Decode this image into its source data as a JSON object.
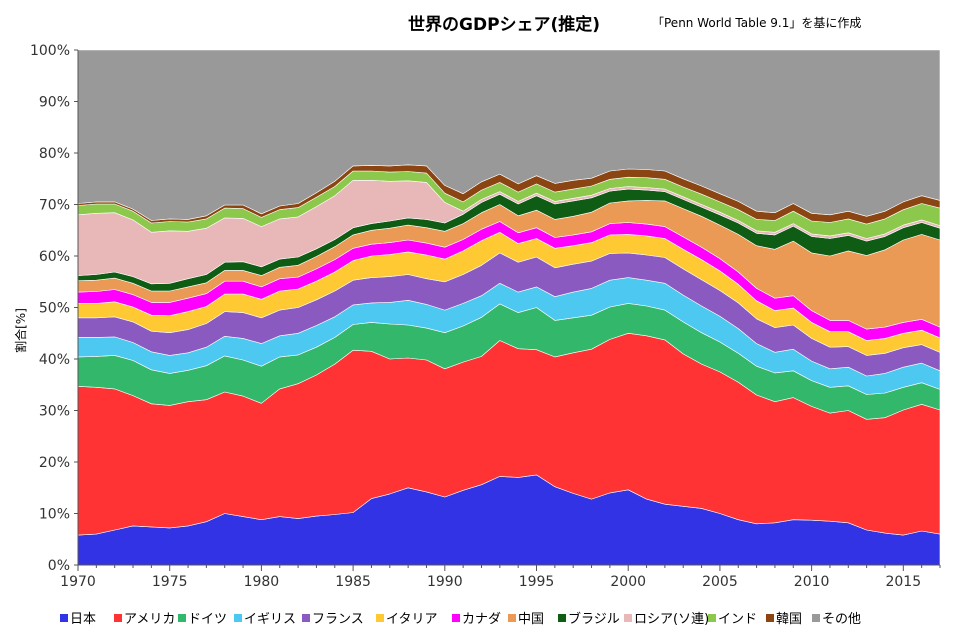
{
  "chart_data": {
    "type": "area",
    "title": "世界のGDPシェア(推定)",
    "subtitle": "「Penn World Table 9.1」を基に作成",
    "ylabel": "割合[%]",
    "xlabel": "",
    "ylim": [
      0,
      100
    ],
    "xlim": [
      1970,
      2017
    ],
    "stacked": true,
    "grid": "off",
    "legend_position": "bottom",
    "x_ticks": [
      "1970",
      "1975",
      "1980",
      "1985",
      "1990",
      "1995",
      "2000",
      "2005",
      "2010",
      "2015"
    ],
    "y_ticks": [
      "0%",
      "10%",
      "20%",
      "30%",
      "40%",
      "50%",
      "60%",
      "70%",
      "80%",
      "90%",
      "100%"
    ],
    "x": [
      1970,
      1971,
      1972,
      1973,
      1974,
      1975,
      1976,
      1977,
      1978,
      1979,
      1980,
      1981,
      1982,
      1983,
      1984,
      1985,
      1986,
      1987,
      1988,
      1989,
      1990,
      1991,
      1992,
      1993,
      1994,
      1995,
      1996,
      1997,
      1998,
      1999,
      2000,
      2001,
      2002,
      2003,
      2004,
      2005,
      2006,
      2007,
      2008,
      2009,
      2010,
      2011,
      2012,
      2013,
      2014,
      2015,
      2016,
      2017
    ],
    "series": [
      {
        "name": "日本",
        "color": "#3333e6",
        "values": [
          5.8,
          6.0,
          6.8,
          7.6,
          7.4,
          7.2,
          7.6,
          8.4,
          10.0,
          9.4,
          8.8,
          9.4,
          9.0,
          9.5,
          9.8,
          10.2,
          12.9,
          13.8,
          15.0,
          14.2,
          13.2,
          14.5,
          15.6,
          17.2,
          17.0,
          17.5,
          15.2,
          13.9,
          12.8,
          14.0,
          14.6,
          12.8,
          11.8,
          11.4,
          11.0,
          10.0,
          8.8,
          8.0,
          8.2,
          8.8,
          8.7,
          8.5,
          8.2,
          6.8,
          6.2,
          5.8,
          6.6,
          6.0
        ]
      },
      {
        "name": "アメリカ",
        "color": "#ff3333",
        "values": [
          28.9,
          28.5,
          27.4,
          25.3,
          23.9,
          23.8,
          24.1,
          23.7,
          23.6,
          23.4,
          22.6,
          24.8,
          26.2,
          27.4,
          29.2,
          31.5,
          28.6,
          26.2,
          25.2,
          25.6,
          24.9,
          24.9,
          24.9,
          26.4,
          25.0,
          24.3,
          25.2,
          27.3,
          29.1,
          29.8,
          30.4,
          31.7,
          31.9,
          29.6,
          28.0,
          27.5,
          26.7,
          25.0,
          23.5,
          23.7,
          22.1,
          21.0,
          21.8,
          21.5,
          22.4,
          24.3,
          24.6,
          24.1
        ]
      },
      {
        "name": "ドイツ",
        "color": "#33b86b",
        "values": [
          5.7,
          6.0,
          6.5,
          6.8,
          6.6,
          6.2,
          6.1,
          6.6,
          7.0,
          7.0,
          7.2,
          6.2,
          5.6,
          5.4,
          5.2,
          5.0,
          5.6,
          6.8,
          6.4,
          6.2,
          7.0,
          7.0,
          7.6,
          7.1,
          7.0,
          8.2,
          7.1,
          6.8,
          6.6,
          6.3,
          5.8,
          5.8,
          5.8,
          6.2,
          6.1,
          5.8,
          5.6,
          5.6,
          5.6,
          5.2,
          5.0,
          5.0,
          4.8,
          4.8,
          4.8,
          4.4,
          4.2,
          4.0
        ]
      },
      {
        "name": "イギリス",
        "color": "#4dc8f0",
        "values": [
          3.8,
          3.7,
          3.6,
          3.5,
          3.5,
          3.5,
          3.4,
          3.6,
          3.8,
          4.2,
          4.4,
          4.1,
          4.2,
          4.2,
          4.0,
          3.8,
          3.8,
          4.2,
          4.8,
          4.6,
          4.4,
          4.4,
          4.2,
          4.0,
          4.0,
          4.0,
          4.6,
          5.0,
          5.2,
          5.2,
          5.0,
          5.0,
          5.2,
          5.2,
          5.2,
          5.0,
          4.8,
          4.4,
          4.0,
          4.2,
          3.8,
          3.6,
          3.6,
          3.6,
          3.8,
          3.9,
          3.8,
          3.6
        ]
      },
      {
        "name": "フランス",
        "color": "#8a5ac0",
        "values": [
          3.8,
          3.8,
          3.9,
          4.0,
          4.0,
          4.4,
          4.5,
          4.6,
          4.8,
          5.0,
          5.0,
          5.0,
          5.0,
          5.0,
          5.0,
          4.8,
          4.9,
          5.0,
          5.0,
          5.0,
          5.5,
          5.6,
          5.9,
          5.9,
          5.8,
          5.8,
          5.6,
          5.4,
          5.3,
          5.2,
          4.8,
          4.9,
          5.0,
          5.1,
          5.1,
          5.0,
          5.0,
          4.8,
          4.8,
          4.7,
          4.4,
          4.2,
          4.0,
          4.0,
          3.9,
          3.8,
          3.6,
          3.6
        ]
      },
      {
        "name": "イタリア",
        "color": "#ffc933",
        "values": [
          2.8,
          2.8,
          2.9,
          2.9,
          3.1,
          3.3,
          3.5,
          3.3,
          3.4,
          3.6,
          3.6,
          3.7,
          3.6,
          3.6,
          3.7,
          3.8,
          4.2,
          4.3,
          4.4,
          4.6,
          4.4,
          4.6,
          4.8,
          4.0,
          3.6,
          3.6,
          3.8,
          3.6,
          3.6,
          3.6,
          3.6,
          3.7,
          3.7,
          3.8,
          3.9,
          3.8,
          3.6,
          3.5,
          3.3,
          3.3,
          3.1,
          3.0,
          2.9,
          2.9,
          2.9,
          2.8,
          2.8,
          2.8
        ]
      },
      {
        "name": "カナダ",
        "color": "#ff00ff",
        "values": [
          2.2,
          2.3,
          2.4,
          2.4,
          2.5,
          2.6,
          2.6,
          2.5,
          2.5,
          2.5,
          2.4,
          2.4,
          2.3,
          2.4,
          2.4,
          2.4,
          2.3,
          2.3,
          2.3,
          2.3,
          2.3,
          2.2,
          2.2,
          2.1,
          2.1,
          2.1,
          2.1,
          2.1,
          2.1,
          2.2,
          2.3,
          2.3,
          2.3,
          2.4,
          2.4,
          2.4,
          2.4,
          2.4,
          2.4,
          2.4,
          2.3,
          2.2,
          2.2,
          2.2,
          2.2,
          2.1,
          2.1,
          2.1
        ]
      },
      {
        "name": "中国",
        "color": "#ea9a55",
        "values": [
          2.2,
          2.2,
          2.2,
          2.2,
          2.2,
          2.2,
          2.2,
          2.1,
          2.1,
          2.1,
          2.2,
          2.2,
          2.3,
          2.4,
          2.5,
          2.6,
          2.7,
          2.8,
          2.9,
          3.0,
          3.1,
          3.1,
          3.2,
          3.3,
          3.3,
          3.4,
          3.5,
          3.6,
          3.8,
          4.0,
          4.2,
          4.6,
          5.0,
          5.5,
          6.0,
          6.5,
          7.3,
          8.3,
          9.5,
          10.6,
          11.2,
          12.5,
          13.5,
          14.3,
          15.0,
          16.0,
          16.5,
          16.9
        ]
      },
      {
        "name": "ブラジル",
        "color": "#0f5c14",
        "values": [
          1.0,
          1.1,
          1.2,
          1.3,
          1.4,
          1.5,
          1.6,
          1.6,
          1.6,
          1.7,
          1.7,
          1.6,
          1.6,
          1.5,
          1.4,
          1.4,
          1.3,
          1.4,
          1.4,
          1.6,
          1.6,
          1.8,
          2.0,
          2.0,
          2.3,
          2.8,
          3.0,
          3.0,
          2.8,
          2.3,
          2.3,
          2.0,
          1.8,
          1.8,
          1.8,
          2.0,
          2.2,
          2.4,
          2.8,
          2.9,
          3.2,
          3.4,
          3.0,
          2.8,
          2.6,
          2.4,
          2.3,
          2.3
        ]
      },
      {
        "name": "ロシア(ソ連)",
        "color": "#e8b8b8",
        "values": [
          11.8,
          11.9,
          11.5,
          11.0,
          10.0,
          10.2,
          9.2,
          9.0,
          8.6,
          8.4,
          7.8,
          7.8,
          7.8,
          8.2,
          8.5,
          9.2,
          8.4,
          7.7,
          7.2,
          7.2,
          4.0,
          0.6,
          0.6,
          0.5,
          0.5,
          0.5,
          0.5,
          0.5,
          0.5,
          0.5,
          0.5,
          0.5,
          0.5,
          0.5,
          0.5,
          0.5,
          0.5,
          0.5,
          0.5,
          0.5,
          0.5,
          0.5,
          0.5,
          0.5,
          0.5,
          0.5,
          0.5,
          0.5
        ]
      },
      {
        "name": "インド",
        "color": "#8cc84b",
        "values": [
          1.8,
          1.8,
          1.7,
          1.7,
          1.8,
          1.8,
          1.8,
          1.8,
          1.9,
          1.9,
          1.8,
          1.8,
          1.8,
          1.8,
          1.8,
          1.8,
          1.8,
          1.8,
          1.8,
          1.8,
          1.8,
          1.8,
          1.8,
          1.8,
          1.8,
          1.8,
          1.8,
          1.8,
          1.8,
          1.8,
          1.8,
          1.9,
          1.9,
          1.9,
          2.0,
          2.0,
          2.1,
          2.2,
          2.3,
          2.4,
          2.5,
          2.6,
          2.7,
          2.8,
          2.9,
          3.0,
          3.2,
          3.4
        ]
      },
      {
        "name": "韓国",
        "color": "#8b4513",
        "values": [
          0.4,
          0.4,
          0.4,
          0.4,
          0.5,
          0.5,
          0.5,
          0.6,
          0.6,
          0.7,
          0.7,
          0.7,
          0.8,
          0.9,
          1.0,
          1.0,
          1.1,
          1.2,
          1.3,
          1.4,
          1.5,
          1.6,
          1.6,
          1.6,
          1.6,
          1.6,
          1.7,
          1.7,
          1.5,
          1.6,
          1.6,
          1.6,
          1.6,
          1.6,
          1.6,
          1.6,
          1.6,
          1.6,
          1.5,
          1.5,
          1.5,
          1.5,
          1.5,
          1.5,
          1.5,
          1.5,
          1.5,
          1.5
        ]
      },
      {
        "name": "その他",
        "color": "#999999",
        "values": [
          29.8,
          29.5,
          29.5,
          30.9,
          33.2,
          32.8,
          32.9,
          32.2,
          30.1,
          29.1,
          31.8,
          30.3,
          30.0,
          28.0,
          27.6,
          26.5,
          24.8,
          24.7,
          24.5,
          24.5,
          28.3,
          27.0,
          25.7,
          24.3,
          26.0,
          24.4,
          25.9,
          25.0,
          24.9,
          23.6,
          23.1,
          23.5,
          23.3,
          25.1,
          26.6,
          28.1,
          29.5,
          31.3,
          31.6,
          29.8,
          31.8,
          32.1,
          32.2,
          32.5,
          31.5,
          29.7,
          29.7,
          29.8
        ]
      }
    ]
  }
}
